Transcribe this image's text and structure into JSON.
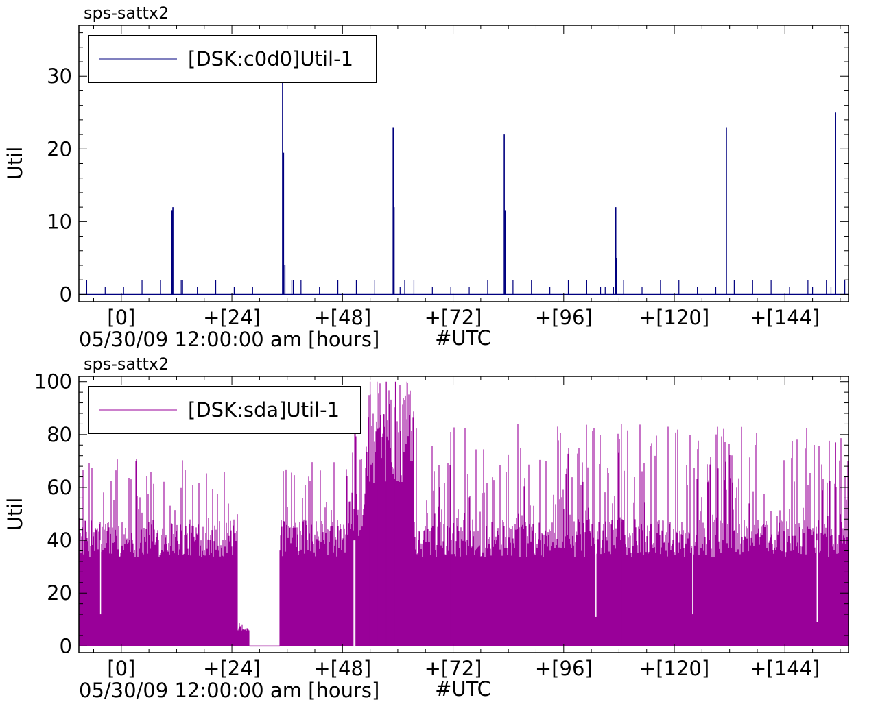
{
  "chart_data": [
    {
      "type": "line",
      "host": "sps-sattx2",
      "ylabel": "Util",
      "xlabel_start": "05/30/09 12:00:00 am [hours]",
      "xlabel_tz": "#UTC",
      "x_tick_labels": [
        "[0]",
        "+[24]",
        "+[48]",
        "+[72]",
        "+[96]",
        "+[120]",
        "+[144]"
      ],
      "x_ticks": [
        0,
        24,
        48,
        72,
        96,
        120,
        144
      ],
      "xlim": [
        -9.2,
        157.8
      ],
      "y_ticks": [
        0,
        10,
        20,
        30
      ],
      "ylim": [
        -1,
        37
      ],
      "grid": false,
      "legend_position": "top-left",
      "series": [
        {
          "name": "[DSK:c0d0]Util-1",
          "color": "#00007f",
          "baseline": 0,
          "spikes": [
            [
              -7.5,
              2
            ],
            [
              -3.5,
              1
            ],
            [
              0.5,
              1
            ],
            [
              4.5,
              2
            ],
            [
              8.5,
              2
            ],
            [
              11.0,
              11.5
            ],
            [
              11.2,
              12
            ],
            [
              13.0,
              2
            ],
            [
              13.3,
              2
            ],
            [
              16.5,
              1
            ],
            [
              20.5,
              2
            ],
            [
              24.5,
              1
            ],
            [
              28.5,
              1
            ],
            [
              35.0,
              30
            ],
            [
              35.2,
              19.5
            ],
            [
              35.5,
              4
            ],
            [
              37.0,
              2
            ],
            [
              37.3,
              2
            ],
            [
              39.0,
              2
            ],
            [
              43.0,
              1
            ],
            [
              47.0,
              2
            ],
            [
              51.0,
              2
            ],
            [
              55.0,
              2
            ],
            [
              59.0,
              23
            ],
            [
              59.2,
              12
            ],
            [
              60.5,
              1
            ],
            [
              61.5,
              2
            ],
            [
              63.5,
              2
            ],
            [
              67.5,
              1
            ],
            [
              71.5,
              1
            ],
            [
              75.5,
              1
            ],
            [
              79.5,
              2
            ],
            [
              83.1,
              22
            ],
            [
              83.3,
              11.5
            ],
            [
              85.0,
              2
            ],
            [
              89.0,
              2
            ],
            [
              93.0,
              1
            ],
            [
              97.0,
              2
            ],
            [
              101.0,
              2
            ],
            [
              104.0,
              1
            ],
            [
              105.0,
              1
            ],
            [
              106.8,
              1
            ],
            [
              107.3,
              12
            ],
            [
              107.5,
              5
            ],
            [
              109.0,
              2
            ],
            [
              113.0,
              1
            ],
            [
              117.0,
              2
            ],
            [
              121.0,
              2
            ],
            [
              125.0,
              1
            ],
            [
              129.0,
              1
            ],
            [
              131.3,
              23
            ],
            [
              133.0,
              2
            ],
            [
              137.0,
              2
            ],
            [
              141.0,
              2
            ],
            [
              145.0,
              1
            ],
            [
              149.0,
              2
            ],
            [
              150.0,
              1
            ],
            [
              153.0,
              2
            ],
            [
              154.0,
              1
            ],
            [
              155.0,
              25
            ],
            [
              157.0,
              2
            ]
          ]
        }
      ]
    },
    {
      "type": "area",
      "host": "sps-sattx2",
      "ylabel": "Util",
      "xlabel_start": "05/30/09 12:00:00 am [hours]",
      "xlabel_tz": "#UTC",
      "x_tick_labels": [
        "[0]",
        "+[24]",
        "+[48]",
        "+[72]",
        "+[96]",
        "+[120]",
        "+[144]"
      ],
      "x_ticks": [
        0,
        24,
        48,
        72,
        96,
        120,
        144
      ],
      "xlim": [
        -9.2,
        157.8
      ],
      "y_ticks": [
        0,
        20,
        40,
        60,
        80,
        100
      ],
      "ylim": [
        -2.5,
        102
      ],
      "grid": false,
      "legend_position": "top-left",
      "series": [
        {
          "name": "[DSK:sda]Util-1",
          "color": "#990099",
          "segments": [
            {
              "from": -9.2,
              "to": 25.2,
              "typical_min": 0,
              "typical_max": 48,
              "peak_max": 73
            },
            {
              "from": 25.2,
              "to": 27.8,
              "typical_min": 0,
              "typical_max": 8,
              "peak_max": 9
            },
            {
              "from": 27.8,
              "to": 34.4,
              "typical_min": 0,
              "typical_max": 0,
              "peak_max": 0
            },
            {
              "from": 34.4,
              "to": 50.0,
              "typical_min": 0,
              "typical_max": 48,
              "peak_max": 73
            },
            {
              "from": 50.0,
              "to": 53.0,
              "typical_min": 0,
              "typical_max": 58,
              "peak_max": 100
            },
            {
              "from": 53.0,
              "to": 63.5,
              "typical_min": 0,
              "typical_max": 88,
              "peak_max": 100
            },
            {
              "from": 63.5,
              "to": 157.8,
              "typical_min": 0,
              "typical_max": 48,
              "peak_max": 84
            }
          ],
          "notable_peaks": [
            [
              54.0,
              100
            ],
            [
              55.5,
              100
            ],
            [
              57.5,
              100
            ],
            [
              59.5,
              100
            ],
            [
              62.0,
              100
            ],
            [
              71.5,
              81
            ],
            [
              108.5,
              84
            ],
            [
              155.0,
              77
            ]
          ],
          "notable_dips": [
            [
              50.5,
              0
            ],
            [
              50.7,
              0
            ],
            [
              -4.5,
              12
            ],
            [
              103.0,
              11
            ],
            [
              124.0,
              12
            ],
            [
              151.0,
              9
            ]
          ]
        }
      ]
    }
  ]
}
